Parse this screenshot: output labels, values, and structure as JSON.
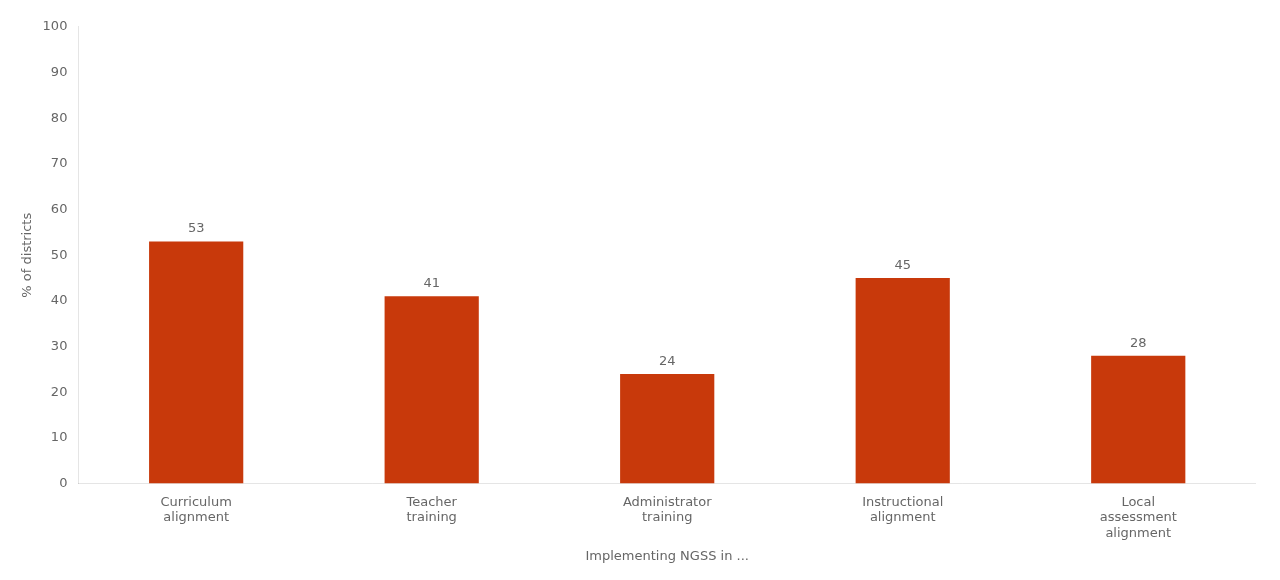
{
  "chart_data": {
    "type": "bar",
    "categories": [
      "Curriculum\nalignment",
      "Teacher\ntraining",
      "Administrator\ntraining",
      "Instructional\nalignment",
      "Local\nassessment\nalignment"
    ],
    "values": [
      53,
      41,
      24,
      45,
      28
    ],
    "color": "#C8390B",
    "xlabel": "Implementing NGSS in ...",
    "ylabel": "% of districts",
    "ylim": [
      0,
      100
    ],
    "yticks": [
      0,
      10,
      20,
      30,
      40,
      50,
      60,
      70,
      80,
      90,
      100
    ],
    "grid": false,
    "data_labels": true
  }
}
